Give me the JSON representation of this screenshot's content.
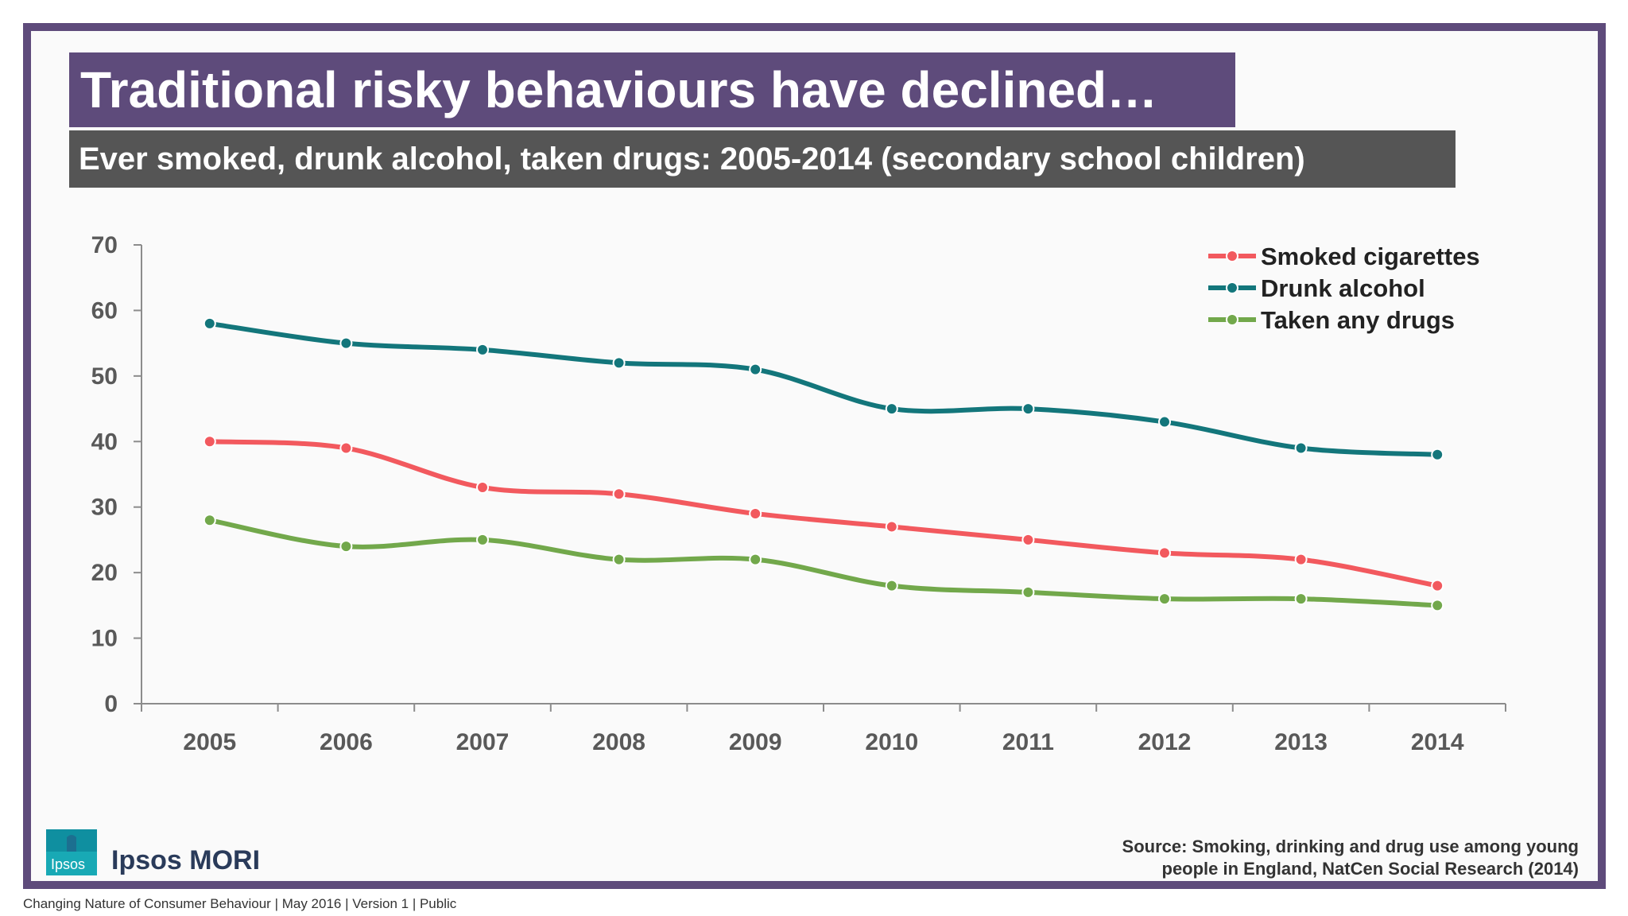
{
  "title": "Traditional risky behaviours have declined…",
  "subtitle": "Ever smoked, drunk alcohol, taken drugs: 2005-2014 (secondary school children)",
  "colors": {
    "frame": "#5e4b7b",
    "title_bg": "#5e4b7b",
    "subtitle_bg": "#555555",
    "smoked": "#f2595e",
    "alcohol": "#13767b",
    "drugs": "#72a84b"
  },
  "chart_data": {
    "type": "line",
    "x": [
      "2005",
      "2006",
      "2007",
      "2008",
      "2009",
      "2010",
      "2011",
      "2012",
      "2013",
      "2014"
    ],
    "ylim": [
      0,
      70
    ],
    "yticks": [
      "0",
      "10",
      "20",
      "30",
      "40",
      "50",
      "60",
      "70"
    ],
    "grid": false,
    "legend_position": "top-right",
    "xlabel": "",
    "ylabel": "",
    "series": [
      {
        "name": "Smoked cigarettes",
        "color": "#f2595e",
        "values": [
          40,
          39,
          33,
          32,
          29,
          27,
          25,
          23,
          22,
          18
        ]
      },
      {
        "name": "Drunk alcohol",
        "color": "#13767b",
        "values": [
          58,
          55,
          54,
          52,
          51,
          45,
          45,
          43,
          39,
          38
        ]
      },
      {
        "name": "Taken any drugs",
        "color": "#72a84b",
        "values": [
          28,
          24,
          25,
          22,
          22,
          18,
          17,
          16,
          16,
          15
        ]
      }
    ]
  },
  "logo": {
    "text": "Ipsos"
  },
  "brand": "Ipsos MORI",
  "source": {
    "line1": "Source: Smoking, drinking and drug use among young",
    "line2": "people in England, NatCen Social Research (2014)"
  },
  "footer": "Changing Nature of Consumer Behaviour |  May 2016 |  Version 1  |  Public"
}
